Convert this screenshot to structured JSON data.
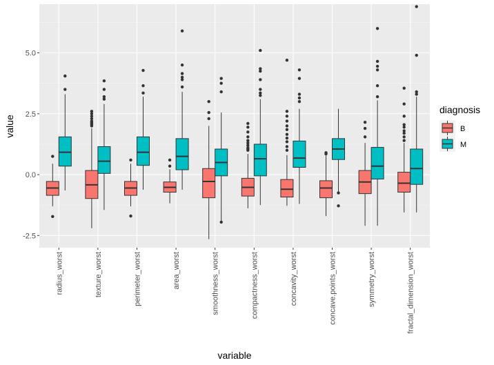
{
  "chart_data": {
    "type": "boxplot",
    "xlabel": "variable",
    "ylabel": "value",
    "ylim": [
      -3.0,
      7.0
    ],
    "yticks": [
      -2.5,
      0.0,
      2.5,
      5.0
    ],
    "ytick_labels": [
      "-2.5",
      "0.0",
      "2.5",
      "5.0"
    ],
    "legend": {
      "title": "diagnosis",
      "position": "right"
    },
    "categories": [
      "radius_worst",
      "texture_worst",
      "perimeter_worst",
      "area_worst",
      "smoothness_worst",
      "compactness_worst",
      "concavity_worst",
      "concave.points_worst",
      "symmetry_worst",
      "fractal_dimension_worst"
    ],
    "series": [
      {
        "name": "B",
        "color": "#F8766D",
        "boxes": [
          {
            "whislo": -1.3,
            "q1": -0.85,
            "med": -0.55,
            "q3": -0.28,
            "whishi": 0.45,
            "fliers": [
              0.75,
              -1.72
            ]
          },
          {
            "whislo": -2.2,
            "q1": -0.98,
            "med": -0.42,
            "q3": 0.17,
            "whishi": 1.9,
            "fliers": [
              2.0,
              2.05,
              2.1,
              2.15,
              2.2,
              2.3,
              2.4,
              2.5,
              2.6
            ]
          },
          {
            "whislo": -1.3,
            "q1": -0.85,
            "med": -0.55,
            "q3": -0.28,
            "whishi": 0.45,
            "fliers": [
              0.6,
              -1.7
            ]
          },
          {
            "whislo": -1.18,
            "q1": -0.72,
            "med": -0.52,
            "q3": -0.3,
            "whishi": 0.22,
            "fliers": [
              0.35,
              0.6
            ]
          },
          {
            "whislo": -2.65,
            "q1": -0.95,
            "med": -0.28,
            "q3": 0.25,
            "whishi": 2.0,
            "fliers": [
              2.3,
              2.55,
              3.0
            ]
          },
          {
            "whislo": -1.38,
            "q1": -0.88,
            "med": -0.52,
            "q3": -0.15,
            "whishi": 0.85,
            "fliers": [
              1.0,
              1.05,
              1.1,
              1.2,
              1.3,
              1.4,
              1.55,
              1.75,
              1.95,
              2.1
            ]
          },
          {
            "whislo": -1.28,
            "q1": -0.92,
            "med": -0.6,
            "q3": -0.2,
            "whishi": 0.8,
            "fliers": [
              1.0,
              1.15,
              1.35,
              1.5,
              1.65,
              1.85,
              2.0,
              2.2,
              2.4,
              2.6,
              4.7
            ]
          },
          {
            "whislo": -1.7,
            "q1": -0.95,
            "med": -0.55,
            "q3": -0.25,
            "whishi": 0.78,
            "fliers": [
              0.85,
              0.9
            ]
          },
          {
            "whislo": -2.1,
            "q1": -0.78,
            "med": -0.3,
            "q3": 0.17,
            "whishi": 1.3,
            "fliers": [
              1.55,
              1.9,
              2.15
            ]
          },
          {
            "whislo": -1.55,
            "q1": -0.72,
            "med": -0.35,
            "q3": 0.1,
            "whishi": 1.3,
            "fliers": [
              1.4,
              1.55,
              1.7,
              1.8,
              1.95,
              2.05,
              2.4,
              2.9,
              3.55
            ]
          }
        ]
      },
      {
        "name": "M",
        "color": "#00BFC4",
        "boxes": [
          {
            "whislo": -0.65,
            "q1": 0.35,
            "med": 0.92,
            "q3": 1.55,
            "whishi": 3.3,
            "fliers": [
              3.5,
              4.05
            ]
          },
          {
            "whislo": -1.45,
            "q1": 0.05,
            "med": 0.55,
            "q3": 1.15,
            "whishi": 2.9,
            "fliers": [
              3.1,
              3.2,
              3.5,
              3.85
            ]
          },
          {
            "whislo": -0.62,
            "q1": 0.38,
            "med": 0.92,
            "q3": 1.55,
            "whishi": 3.2,
            "fliers": [
              3.35,
              3.65,
              4.28
            ]
          },
          {
            "whislo": -0.62,
            "q1": 0.2,
            "med": 0.75,
            "q3": 1.48,
            "whishi": 3.4,
            "fliers": [
              3.6,
              3.9,
              4.0,
              4.15,
              4.5,
              5.9
            ]
          },
          {
            "whislo": -1.9,
            "q1": -0.05,
            "med": 0.5,
            "q3": 1.05,
            "whishi": 2.55,
            "fliers": [
              3.4,
              3.75,
              3.95,
              -1.95
            ]
          },
          {
            "whislo": -1.25,
            "q1": -0.05,
            "med": 0.65,
            "q3": 1.25,
            "whishi": 3.1,
            "fliers": [
              3.25,
              3.35,
              3.5,
              3.9,
              4.25,
              4.35,
              5.1
            ]
          },
          {
            "whislo": -1.2,
            "q1": 0.3,
            "med": 0.68,
            "q3": 1.38,
            "whishi": 2.7,
            "fliers": [
              3.0,
              3.15,
              3.3,
              3.95,
              4.3
            ]
          },
          {
            "whislo": -0.72,
            "q1": 0.62,
            "med": 1.05,
            "q3": 1.48,
            "whishi": 2.7,
            "fliers": [
              -0.75,
              -1.28
            ]
          },
          {
            "whislo": -2.1,
            "q1": -0.18,
            "med": 0.35,
            "q3": 1.12,
            "whishi": 3.05,
            "fliers": [
              3.2,
              3.65,
              4.3,
              4.45,
              4.65,
              6.0
            ]
          },
          {
            "whislo": -1.55,
            "q1": -0.4,
            "med": 0.25,
            "q3": 1.05,
            "whishi": 3.2,
            "fliers": [
              3.3,
              3.4,
              4.9,
              6.9
            ]
          }
        ]
      }
    ]
  }
}
